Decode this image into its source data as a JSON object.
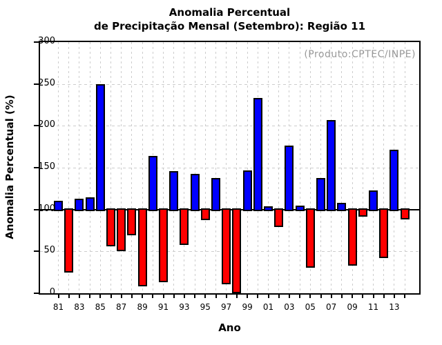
{
  "title": {
    "line1": "Anomalia Percentual",
    "line2": "de Precipitação Mensal (Setembro): Região 11"
  },
  "annotation": "(Produto:CPTEC/INPE)",
  "axes": {
    "y_label": "Anomalia Percentual (%)",
    "x_label": "Ano",
    "y_ticks": [
      0,
      50,
      100,
      150,
      200,
      250,
      300
    ],
    "y_dashed_gridlines": [
      50,
      150,
      200,
      250
    ],
    "x_tick_labels": [
      "81",
      "83",
      "85",
      "87",
      "89",
      "91",
      "93",
      "95",
      "97",
      "99",
      "01",
      "03",
      "05",
      "07",
      "09",
      "11",
      "13"
    ]
  },
  "chart_data": {
    "type": "bar",
    "title": "Anomalia Percentual de Precipitação Mensal (Setembro): Região 11",
    "xlabel": "Ano",
    "ylabel": "Anomalia Percentual (%)",
    "ylim": [
      0,
      300
    ],
    "baseline": 100,
    "grid": "dashed gray, vertical line at every year, horizontal at 50/150/200/250",
    "legend_position": "none",
    "color_above_baseline": "#0000ff",
    "color_below_baseline": "#ff0000",
    "bar_outline_color": "#000000",
    "x": [
      1981,
      1982,
      1983,
      1984,
      1985,
      1986,
      1987,
      1988,
      1989,
      1990,
      1991,
      1992,
      1993,
      1994,
      1995,
      1996,
      1997,
      1998,
      1999,
      2000,
      2001,
      2002,
      2003,
      2004,
      2005,
      2006,
      2007,
      2008,
      2009,
      2010,
      2011,
      2012,
      2013,
      2014
    ],
    "values": [
      109,
      26,
      111,
      113,
      248,
      58,
      52,
      71,
      10,
      162,
      15,
      144,
      59,
      141,
      89,
      136,
      12,
      2,
      145,
      232,
      102,
      81,
      175,
      103,
      32,
      136,
      205,
      106,
      35,
      93,
      121,
      44,
      170,
      90
    ]
  }
}
